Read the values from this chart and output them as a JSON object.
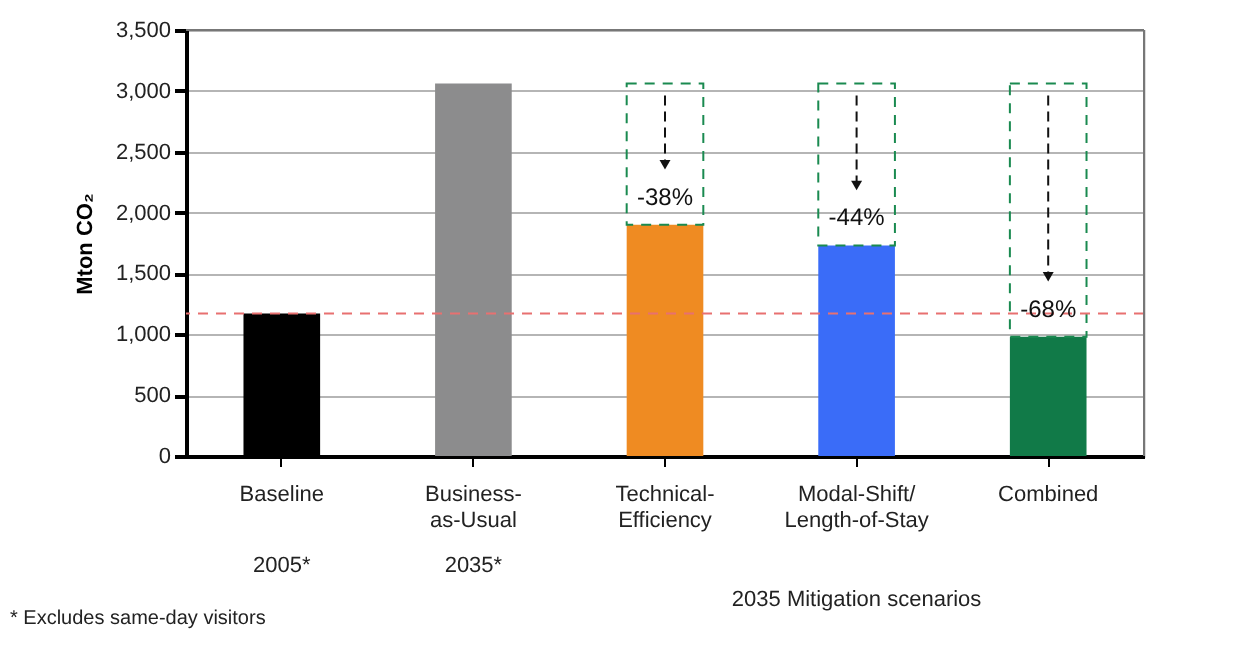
{
  "chart_data": {
    "type": "bar",
    "ylabel": "Mton CO₂",
    "categories": [
      "Baseline",
      "Business-as-Usual",
      "Technical-Efficiency",
      "Modal-Shift/Length-of-Stay",
      "Combined"
    ],
    "stacked": true,
    "series": [
      {
        "colors": [
          "#000000",
          "#8c8c8d",
          "#ef8b22",
          "#3a6cf8",
          "#117a48"
        ],
        "values": [
          1170,
          3060,
          1900,
          1730,
          980
        ]
      },
      {
        "color": "#1a8a50",
        "line_style": "dashed",
        "values": [
          null,
          null,
          1160,
          1330,
          2080
        ]
      }
    ],
    "ylim": [
      0,
      3500
    ],
    "yticks": [
      {
        "value": 0,
        "label": "0"
      },
      {
        "value": 500,
        "label": "500"
      },
      {
        "value": 1000,
        "label": "1,000"
      },
      {
        "value": 1500,
        "label": "1,500"
      },
      {
        "value": 2000,
        "label": "2,000"
      },
      {
        "value": 2500,
        "label": "2,500"
      },
      {
        "value": 3000,
        "label": "3,000"
      },
      {
        "value": 3500,
        "label": "3,500"
      }
    ],
    "grid": "y",
    "ref_lines": [
      {
        "axis": "y",
        "value": 1170,
        "color": "#e87070",
        "line_style": "dashed"
      }
    ],
    "annotations": [
      "-38%",
      "-44%",
      "-68%",
      "2005*",
      "2035*",
      "2035 Mitigation scenarios",
      "* Excludes same-day visitors"
    ]
  }
}
